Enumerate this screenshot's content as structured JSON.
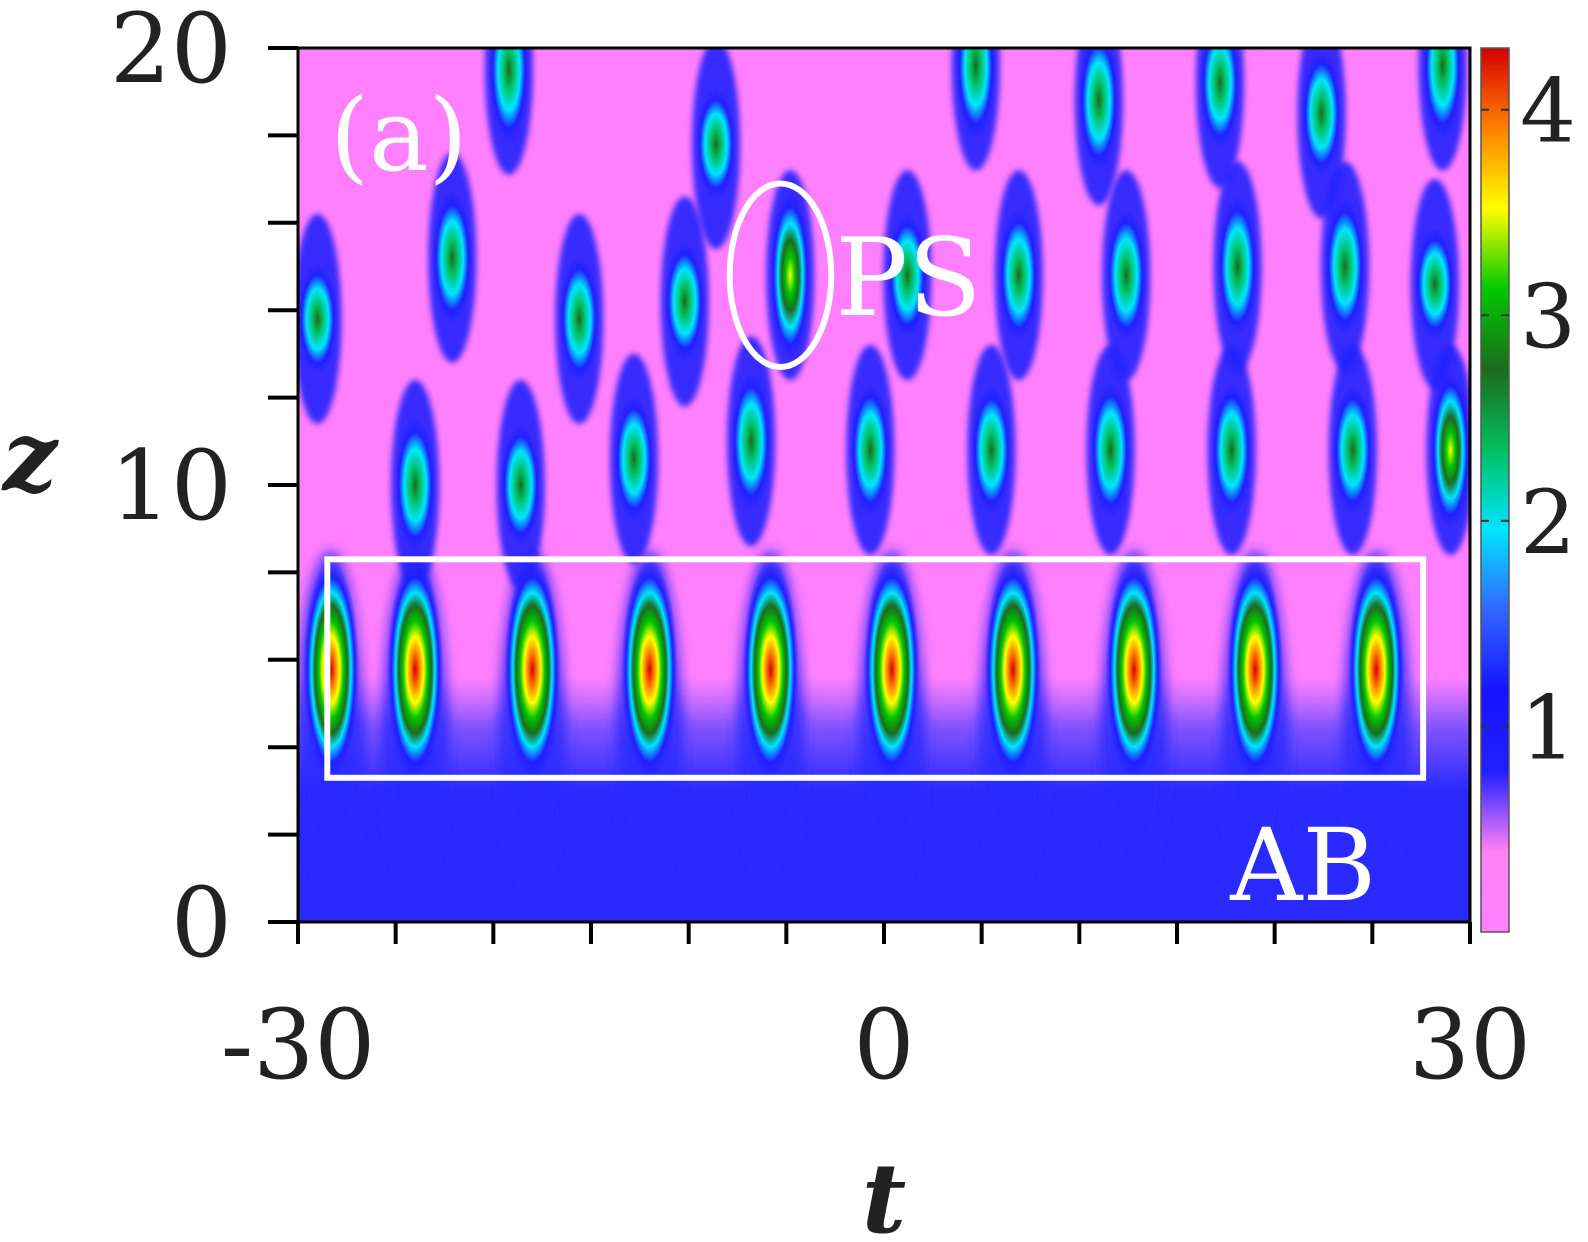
{
  "chart_data": {
    "type": "heatmap",
    "panel_label": "(a)",
    "xlabel": "t",
    "ylabel": "z",
    "xlim": [
      -30,
      30
    ],
    "ylim": [
      0,
      20
    ],
    "x_ticks": [
      {
        "value": -30,
        "label": "-30"
      },
      {
        "value": 0,
        "label": "0"
      },
      {
        "value": 30,
        "label": "30"
      }
    ],
    "x_minor_step": 5,
    "y_ticks": [
      {
        "value": 0,
        "label": "0"
      },
      {
        "value": 10,
        "label": "10"
      },
      {
        "value": 20,
        "label": "20"
      }
    ],
    "y_minor_step": 2,
    "colorbar": {
      "range": [
        0,
        4.3
      ],
      "ticks": [
        {
          "value": 1,
          "label": "1"
        },
        {
          "value": 2,
          "label": "2"
        },
        {
          "value": 3,
          "label": "3"
        },
        {
          "value": 4,
          "label": "4"
        }
      ],
      "colormap": [
        "#ff80ff",
        "#ff82f4",
        "#2020ff",
        "#1414ff",
        "#3366ff",
        "#00e5ff",
        "#00c060",
        "#1e6b1e",
        "#00c800",
        "#ffff00",
        "#ff8000",
        "#d40000"
      ]
    },
    "background": {
      "low_z_color": "#2a2aff",
      "high_z_color": "#ff80ff"
    },
    "ab_peaks": {
      "z": 6,
      "amplitude": 4.2,
      "t": [
        -28.3,
        -24.0,
        -18.0,
        -12.0,
        -5.8,
        0.4,
        6.6,
        12.8,
        19.0,
        25.2
      ]
    },
    "chaotic_peaks": [
      {
        "t": -24.0,
        "z": 10.0,
        "amplitude": 2.6
      },
      {
        "t": -18.6,
        "z": 10.0,
        "amplitude": 2.3
      },
      {
        "t": -12.8,
        "z": 10.6,
        "amplitude": 2.4
      },
      {
        "t": -6.8,
        "z": 11.0,
        "amplitude": 2.7
      },
      {
        "t": -0.7,
        "z": 10.8,
        "amplitude": 2.6
      },
      {
        "t": 5.5,
        "z": 10.8,
        "amplitude": 2.5
      },
      {
        "t": 11.6,
        "z": 10.8,
        "amplitude": 2.7
      },
      {
        "t": 17.8,
        "z": 10.8,
        "amplitude": 2.6
      },
      {
        "t": 24.0,
        "z": 10.8,
        "amplitude": 2.5
      },
      {
        "t": 29.0,
        "z": 10.8,
        "amplitude": 3.3
      },
      {
        "t": -29.0,
        "z": 13.8,
        "amplitude": 2.0
      },
      {
        "t": -22.1,
        "z": 15.2,
        "amplitude": 2.6
      },
      {
        "t": -15.6,
        "z": 13.8,
        "amplitude": 2.4
      },
      {
        "t": -10.2,
        "z": 14.2,
        "amplitude": 2.2
      },
      {
        "t": -4.8,
        "z": 14.8,
        "amplitude": 3.6
      },
      {
        "t": 1.2,
        "z": 14.8,
        "amplitude": 2.4
      },
      {
        "t": 6.9,
        "z": 14.8,
        "amplitude": 2.6
      },
      {
        "t": 12.4,
        "z": 14.8,
        "amplitude": 2.6
      },
      {
        "t": 18.1,
        "z": 15.0,
        "amplitude": 2.8
      },
      {
        "t": 23.6,
        "z": 15.0,
        "amplitude": 2.7
      },
      {
        "t": 28.2,
        "z": 14.6,
        "amplitude": 2.0
      },
      {
        "t": -19.2,
        "z": 19.5,
        "amplitude": 3.0
      },
      {
        "t": -8.6,
        "z": 17.8,
        "amplitude": 2.0
      },
      {
        "t": 4.7,
        "z": 19.6,
        "amplitude": 3.0
      },
      {
        "t": 11.0,
        "z": 18.8,
        "amplitude": 2.8
      },
      {
        "t": 17.2,
        "z": 19.2,
        "amplitude": 2.6
      },
      {
        "t": 22.4,
        "z": 18.5,
        "amplitude": 2.4
      },
      {
        "t": 28.6,
        "z": 19.6,
        "amplitude": 3.0
      }
    ],
    "annotations": [
      {
        "text": "PS",
        "shape": "ellipse",
        "t_center": -5.3,
        "z_center": 14.8,
        "t_halfwidth": 2.6,
        "z_halfheight": 2.1
      },
      {
        "text": "AB",
        "shape": "rectangle",
        "t_range": [
          -28.5,
          27.6
        ],
        "z_range": [
          3.3,
          8.3
        ]
      }
    ]
  }
}
